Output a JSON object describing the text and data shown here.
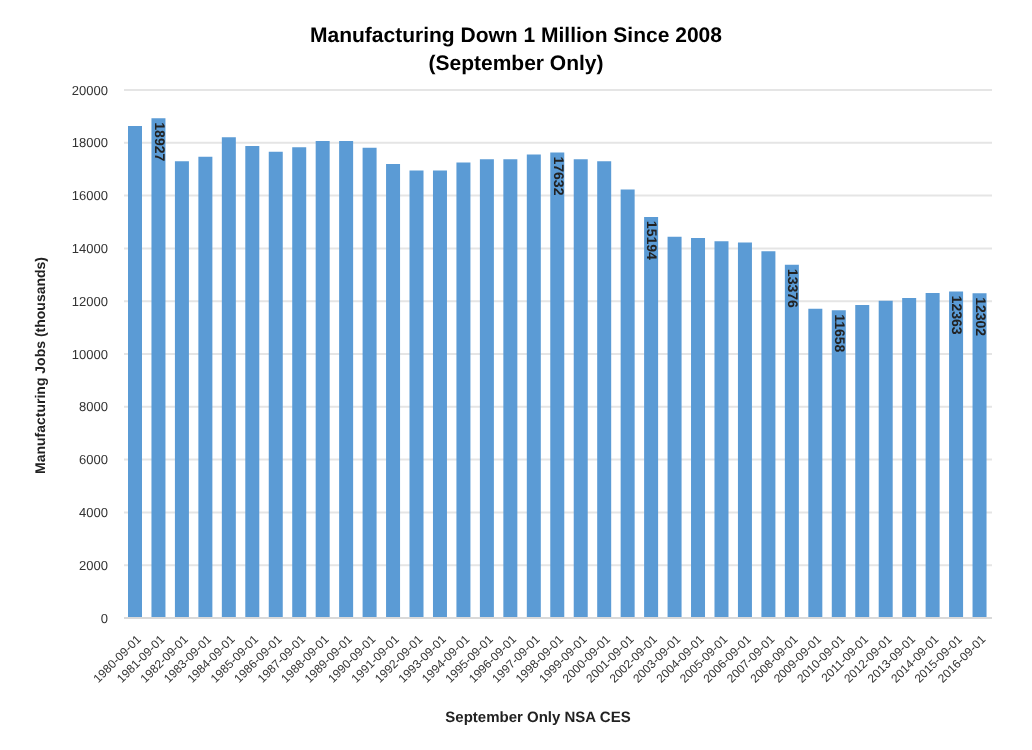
{
  "chart_data": {
    "type": "bar",
    "title": "Manufacturing Down 1 Million Since 2008",
    "subtitle": "(September Only)",
    "xlabel": "September Only NSA CES",
    "ylabel": "Manufacturing Jobs (thousands)",
    "categories": [
      "1980-09-01",
      "1981-09-01",
      "1982-09-01",
      "1983-09-01",
      "1984-09-01",
      "1985-09-01",
      "1986-09-01",
      "1987-09-01",
      "1988-09-01",
      "1989-09-01",
      "1990-09-01",
      "1991-09-01",
      "1992-09-01",
      "1993-09-01",
      "1994-09-01",
      "1995-09-01",
      "1996-09-01",
      "1997-09-01",
      "1998-09-01",
      "1999-09-01",
      "2000-09-01",
      "2001-09-01",
      "2002-09-01",
      "2003-09-01",
      "2004-09-01",
      "2005-09-01",
      "2006-09-01",
      "2007-09-01",
      "2008-09-01",
      "2009-09-01",
      "2010-09-01",
      "2011-09-01",
      "2012-09-01",
      "2013-09-01",
      "2014-09-01",
      "2015-09-01",
      "2016-09-01"
    ],
    "values": [
      18640,
      18927,
      17300,
      17470,
      18210,
      17880,
      17660,
      17830,
      18070,
      18070,
      17810,
      17200,
      16950,
      16950,
      17250,
      17380,
      17380,
      17560,
      17632,
      17380,
      17300,
      16230,
      15194,
      14440,
      14390,
      14270,
      14220,
      13890,
      13376,
      11710,
      11658,
      11860,
      12020,
      12120,
      12310,
      12363,
      12302
    ],
    "value_labels": [
      null,
      "18927",
      null,
      null,
      null,
      null,
      null,
      null,
      null,
      null,
      null,
      null,
      null,
      null,
      null,
      null,
      null,
      null,
      "17632",
      null,
      null,
      null,
      "15194",
      null,
      null,
      null,
      null,
      null,
      "13376",
      null,
      "11658",
      null,
      null,
      null,
      null,
      "12363",
      "12302"
    ],
    "color": "#5b9bd5",
    "ylim": [
      0,
      20000
    ],
    "yticks": [
      0,
      2000,
      4000,
      6000,
      8000,
      10000,
      12000,
      14000,
      16000,
      18000,
      20000
    ],
    "grid": "y",
    "legend": false
  }
}
